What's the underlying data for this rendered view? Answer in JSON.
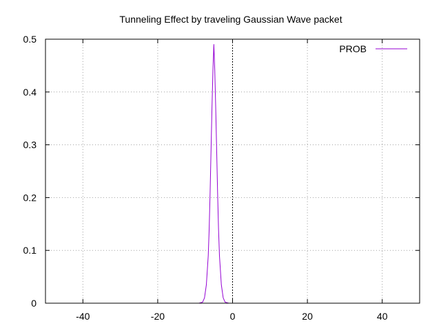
{
  "chart_data": {
    "type": "line",
    "title": "Tunneling Effect by traveling Gaussian Wave packet",
    "xlabel": "",
    "ylabel": "",
    "xlim": [
      -50,
      50
    ],
    "ylim": [
      0,
      0.5
    ],
    "x_ticks": [
      -40,
      -20,
      0,
      20,
      40
    ],
    "y_ticks": [
      0,
      0.1,
      0.2,
      0.3,
      0.4,
      0.5
    ],
    "x_tick_labels": [
      "-40",
      "-20",
      "0",
      "20",
      "40"
    ],
    "y_tick_labels": [
      "0",
      "0.1",
      "0.2",
      "0.3",
      "0.4",
      "0.5"
    ],
    "grid": true,
    "zero_axis_x": 0,
    "legend_position": "top-right",
    "series": [
      {
        "name": "PROB",
        "color": "#9400d3",
        "x": [
          -9.0,
          -8.0,
          -7.5,
          -7.0,
          -6.5,
          -6.25,
          -6.0,
          -5.75,
          -5.5,
          -5.25,
          -5.0,
          -4.75,
          -4.5,
          -4.25,
          -4.0,
          -3.75,
          -3.5,
          -3.0,
          -2.5,
          -2.0,
          -1.0,
          0.0,
          10.0,
          20.0,
          30.0,
          40.0,
          46.0
        ],
        "y": [
          0.0,
          0.002,
          0.01,
          0.035,
          0.09,
          0.14,
          0.21,
          0.29,
          0.37,
          0.44,
          0.49,
          0.44,
          0.37,
          0.29,
          0.21,
          0.14,
          0.09,
          0.035,
          0.01,
          0.002,
          0.0,
          0.0,
          0.0,
          0.0,
          0.0,
          0.0,
          0.0
        ]
      }
    ]
  }
}
